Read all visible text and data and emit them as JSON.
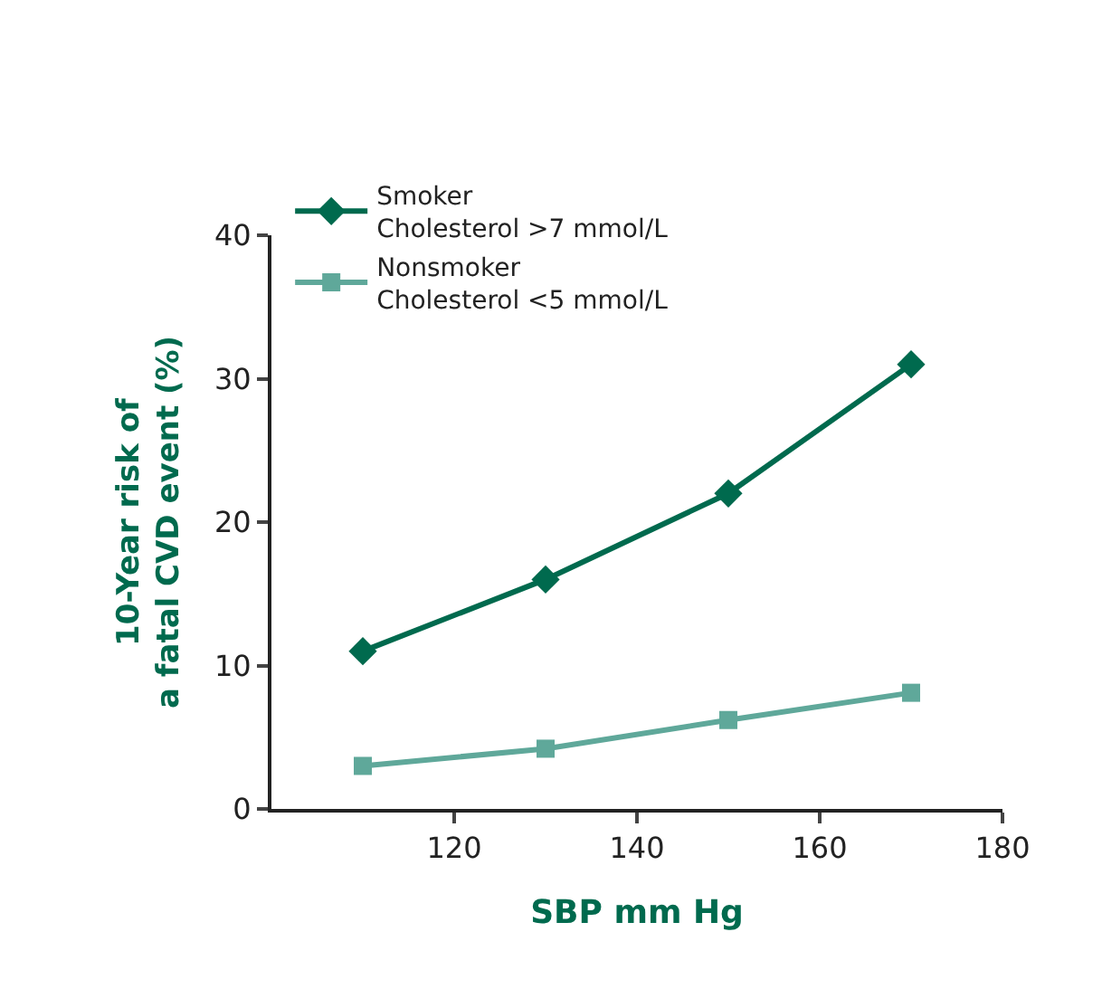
{
  "chart_data": {
    "type": "line",
    "xlabel": "SBP mm Hg",
    "ylabel": "10-Year risk of\na fatal CVD event (%)",
    "x": [
      110,
      130,
      150,
      170
    ],
    "series": [
      {
        "name": "Smoker\nCholesterol >7 mmol/L",
        "color": "#006a4e",
        "values": [
          11,
          16,
          22,
          31
        ],
        "marker": "diamond"
      },
      {
        "name": "Nonsmoker\nCholesterol <5 mmol/L",
        "color": "#5fa89a",
        "values": [
          3,
          4.2,
          6.2,
          8.1
        ],
        "marker": "square"
      }
    ],
    "xlim": [
      100,
      180
    ],
    "xticks": [
      120,
      140,
      160,
      180
    ],
    "ylim": [
      0,
      40
    ],
    "yticks": [
      0,
      10,
      20,
      30,
      40
    ],
    "legend": "top left",
    "line_style": "solid"
  }
}
